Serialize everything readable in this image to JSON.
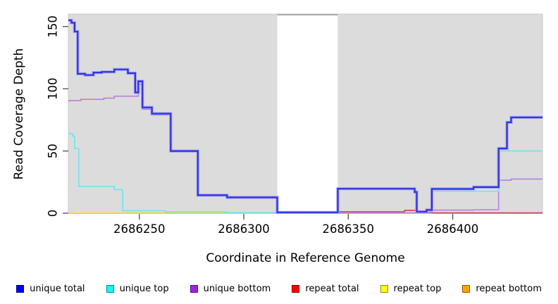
{
  "chart": {
    "ylabel": "Read Coverage Depth",
    "xlabel": "Coordinate in Reference Genome"
  },
  "chart_data": {
    "type": "line",
    "subtype": "step-after",
    "title": "",
    "xlabel": "Coordinate in Reference Genome",
    "ylabel": "Read Coverage Depth",
    "xlim": [
      2686216,
      2686443
    ],
    "ylim": [
      0,
      160
    ],
    "x_ticks": [
      2686250,
      2686300,
      2686350,
      2686400
    ],
    "y_ticks": [
      0,
      50,
      100,
      150
    ],
    "grid": false,
    "plot_background": "#DCDCDC",
    "panel_border_color": "#C8C8C8",
    "gap_region": {
      "x_start": 2686316,
      "x_end": 2686345,
      "color": "#FFFFFF",
      "top_edge_color": "#999999"
    },
    "legend_position": "bottom",
    "series": [
      {
        "name": "unique total",
        "line_color": "#3232E0",
        "halo_color": "#A3A3F2",
        "legend_color": "#0000FF",
        "line_width": 2.2,
        "segments": [
          {
            "end": 2686443,
            "points": [
              [
                2686216,
                155
              ],
              [
                2686217.5,
                153
              ],
              [
                2686219,
                146
              ],
              [
                2686220.5,
                112
              ],
              [
                2686224,
                111
              ],
              [
                2686228,
                113
              ],
              [
                2686232,
                113.5
              ],
              [
                2686238,
                115.5
              ],
              [
                2686244.5,
                112.5
              ],
              [
                2686248,
                97
              ],
              [
                2686249.5,
                106
              ],
              [
                2686251.5,
                85
              ],
              [
                2686256,
                80
              ],
              [
                2686265,
                50
              ],
              [
                2686278,
                14.5
              ],
              [
                2686292,
                12.7
              ],
              [
                2686316,
                0.7
              ],
              [
                2686345,
                19.7
              ],
              [
                2686381.8,
                17
              ],
              [
                2686382.8,
                1.2
              ],
              [
                2686387.5,
                2.6
              ],
              [
                2686390,
                19.5
              ],
              [
                2686410,
                21
              ],
              [
                2686422,
                52
              ],
              [
                2686426,
                73
              ],
              [
                2686428,
                77
              ]
            ]
          }
        ]
      },
      {
        "name": "unique top",
        "line_color": "#70E4EC",
        "legend_color": "#00FFFF",
        "line_width": 1.6,
        "segments": [
          {
            "end": 2686316,
            "points": [
              [
                2686216,
                64
              ],
              [
                2686218,
                62
              ],
              [
                2686219,
                52
              ],
              [
                2686221,
                21.5
              ],
              [
                2686238,
                19
              ],
              [
                2686242,
                2
              ],
              [
                2686262.5,
                1
              ],
              [
                2686292,
                0.5
              ]
            ]
          },
          {
            "end": 2686443,
            "points": [
              [
                2686345,
                19.5
              ],
              [
                2686381.8,
                16.5
              ],
              [
                2686382.8,
                1
              ],
              [
                2686387.5,
                2
              ],
              [
                2686390,
                17.5
              ],
              [
                2686422,
                50
              ]
            ]
          }
        ]
      },
      {
        "name": "unique bottom",
        "line_color": "#B87FDC",
        "legend_color": "#A020F0",
        "line_width": 1.6,
        "segments": [
          {
            "end": 2686443,
            "points": [
              [
                2686216,
                90.5
              ],
              [
                2686222,
                91.5
              ],
              [
                2686233,
                92.5
              ],
              [
                2686238,
                94
              ],
              [
                2686249.5,
                103.5
              ],
              [
                2686251.5,
                83.5
              ],
              [
                2686256,
                79
              ],
              [
                2686265,
                49.5
              ],
              [
                2686278,
                14
              ],
              [
                2686292,
                12.2
              ],
              [
                2686316,
                0.3
              ],
              [
                2686387.5,
                0.6
              ],
              [
                2686390,
                2.5
              ],
              [
                2686410,
                2.8
              ],
              [
                2686422,
                26.5
              ],
              [
                2686428,
                27.5
              ]
            ]
          }
        ]
      },
      {
        "name": "repeat total",
        "line_color": "#D04055",
        "legend_color": "#FF0000",
        "line_width": 1.6,
        "segments": [
          {
            "end": 2686443,
            "points": [
              [
                2686345,
                1.2
              ],
              [
                2686377,
                2.3
              ],
              [
                2686383,
                0.4
              ],
              [
                2686390,
                0.2
              ]
            ]
          }
        ]
      },
      {
        "name": "repeat top",
        "line_color": "#F2F20A",
        "legend_color": "#FFFF00",
        "line_width": 1.6,
        "segments": [
          {
            "end": 2686316,
            "points": [
              [
                2686216,
                0
              ]
            ]
          },
          {
            "end": 2686443,
            "points": [
              [
                2686345,
                0
              ]
            ]
          }
        ]
      },
      {
        "name": "repeat bottom",
        "line_color": "#FF9E1B",
        "legend_color": "#FFA500",
        "line_width": 2,
        "segments": [
          {
            "end": 2686316,
            "points": [
              [
                2686216,
                0
              ]
            ]
          },
          {
            "end": 2686443,
            "points": [
              [
                2686345,
                0
              ]
            ]
          }
        ]
      }
    ]
  }
}
